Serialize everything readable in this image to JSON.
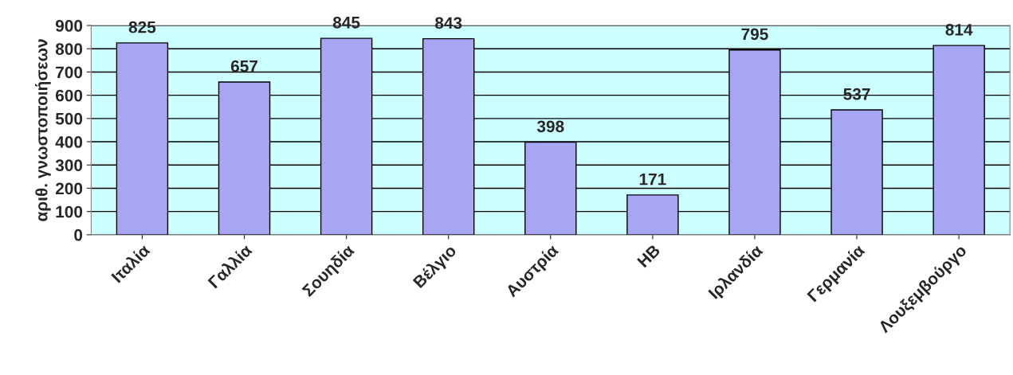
{
  "chart_data": {
    "type": "bar",
    "ylabel": "αριθ. γνωστοποιήσεων",
    "categories": [
      "Ιταλία",
      "Γαλλία",
      "Σουηδία",
      "Βέλγιο",
      "Αυστρία",
      "ΗΒ",
      "Ιρλανδία",
      "Γερμανία",
      "Λουξεμβούργο"
    ],
    "values": [
      825,
      657,
      845,
      843,
      398,
      171,
      795,
      537,
      814
    ],
    "color": "#9999ff",
    "ylim": [
      0,
      900
    ],
    "yticks": [
      0,
      100,
      200,
      300,
      400,
      500,
      600,
      700,
      800,
      900
    ],
    "grid": "y",
    "data_labels": true,
    "legend": false
  }
}
